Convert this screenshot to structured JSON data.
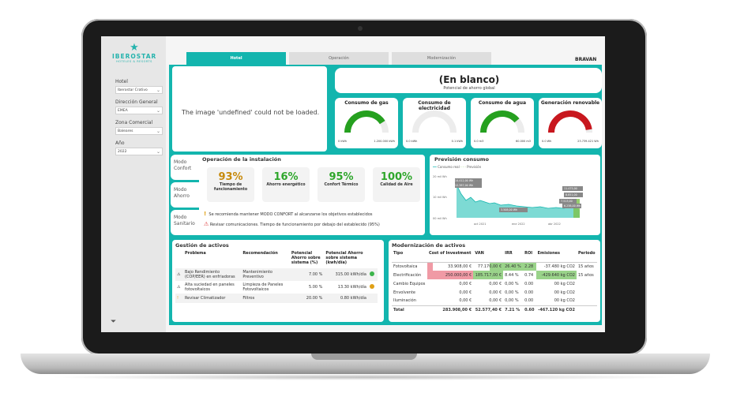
{
  "sidebar": {
    "logo": {
      "name": "IBEROSTAR",
      "tagline": "HOTELES & RESORTS"
    },
    "filters": [
      {
        "label": "Hotel",
        "value": "Iberostar Crativo"
      },
      {
        "label": "Dirección General",
        "value": "EMEA"
      },
      {
        "label": "Zona Comercial",
        "value": "Baleares"
      },
      {
        "label": "Año",
        "value": "2022"
      }
    ]
  },
  "tabs": [
    {
      "label": "Hotel",
      "active": true
    },
    {
      "label": "Operación",
      "active": false
    },
    {
      "label": "Modernización",
      "active": false
    }
  ],
  "brand": "BRAVAN",
  "image_placeholder": "The image 'undefined' could not be loaded.",
  "headline": {
    "title": "(En blanco)",
    "subtitle": "Potencial de ahorro global"
  },
  "gauges": [
    {
      "title": "Consumo de gas",
      "min": "0 kWh",
      "max": "1.200.000 kWh",
      "fill": 0.82,
      "color": "#25a01f"
    },
    {
      "title": "Consumo de electricidad",
      "min": "0.0 kWh",
      "max": "0.1 kWh",
      "fill": 0.0,
      "color": "#25a01f"
    },
    {
      "title": "Consumo de agua",
      "min": "0.0 m3",
      "max": "60.000 m3",
      "fill": 0.78,
      "color": "#25a01f"
    },
    {
      "title": "Generación renovable",
      "min": "0.0 Wh",
      "max": "23.739.421 Wh",
      "fill": 0.95,
      "color": "#c8171e"
    }
  ],
  "modes": [
    "Modo Confort",
    "Modo Ahorro",
    "Modo Sanitario"
  ],
  "operation": {
    "title": "Operación de la instalación",
    "kpis": [
      {
        "value": "93%",
        "label": "Tiempo de funcionamiento",
        "color": "#c78a0c"
      },
      {
        "value": "16%",
        "label": "Ahorro energético",
        "color": "#2ea62b"
      },
      {
        "value": "95%",
        "label": "Confort Térmico",
        "color": "#2ea62b"
      },
      {
        "value": "100%",
        "label": "Calidad de Aire",
        "color": "#2ea62b"
      }
    ],
    "notes": [
      {
        "icon": "!",
        "color": "#e0a015",
        "text": "Se recomienda mantener MODO CONFORT al alcanzarse los objetivos establecidos"
      },
      {
        "icon": "⚠",
        "color": "#d33",
        "text": "Revisar comunicaciones. Tiempo de funcionamiento por debajo del establecido (95%)"
      }
    ]
  },
  "forecast": {
    "title": "Previsión consumo",
    "legend": [
      "Consumo real",
      "Previsión"
    ],
    "yticks": [
      "20 mil Wh",
      "10 mil Wh",
      "00 mil Wh"
    ],
    "xticks": [
      "oct 2021",
      "ene 2022",
      "abr 2022"
    ],
    "labels": [
      "14.412,00 Wh",
      "12.387,00 Wh",
      "11.475,00",
      "8.851,00",
      "7.513,00",
      "6.238,00 Wh",
      "3.508,00 Wh"
    ]
  },
  "assets": {
    "title": "Gestión de activos",
    "columns": [
      "Problema",
      "Recomendación",
      "Potencial Ahorro sobre sistema (%)",
      "Potencial Ahorro sobre sistema (kwh/día)"
    ],
    "rows": [
      {
        "icon": "⚠",
        "problem": "Bajo Rendimiento (COP/EER) en enfriadoras",
        "rec": "Mantenimiento Preventivo",
        "pct": "7.00 %",
        "kwh": "315.00 kWh/día",
        "dot": "#3cb44b"
      },
      {
        "icon": "⚠",
        "problem": "Alta suciedad en paneles fotovoltaicos",
        "rec": "Limpieza de Paneles Fotovoltaicos",
        "pct": "5.00 %",
        "kwh": "13.30 kWh/día",
        "dot": "#e0a015"
      },
      {
        "icon": "!",
        "problem": "Revisar Climatizador",
        "rec": "Filtros",
        "pct": "20.00 %",
        "kwh": "0.80 kWh/día",
        "dot": ""
      }
    ]
  },
  "modernization": {
    "title": "Modernización de activos",
    "columns": [
      "Tipo",
      "Cost of Investment",
      "VAN",
      "IRR",
      "ROI",
      "Emisiones",
      "Periodo"
    ],
    "rows": [
      {
        "tipo": "Fotovoltaica",
        "cost": "33.908,00 €",
        "van": "77.170,00 €",
        "irr": "26.40 %",
        "roi": "2.28",
        "emis": "-37.480 kg CO2",
        "periodo": "15 años"
      },
      {
        "tipo": "Electrificación",
        "cost": "250.000,00 €",
        "van": "185.717,00 €",
        "irr": "8.44 %",
        "roi": "0.74",
        "emis": "-429.640 kg CO2",
        "periodo": "15 años"
      },
      {
        "tipo": "Cambio Equipos",
        "cost": "0,00 €",
        "van": "0,00 €",
        "irr": "0,00 %",
        "roi": "0.00",
        "emis": "00 kg CO2",
        "periodo": ""
      },
      {
        "tipo": "Envolvente",
        "cost": "0,00 €",
        "van": "0,00 €",
        "irr": "0,00 %",
        "roi": "0.00",
        "emis": "00 kg CO2",
        "periodo": ""
      },
      {
        "tipo": "Iluminación",
        "cost": "0,00 €",
        "van": "0,00 €",
        "irr": "0,00 %",
        "roi": "0.00",
        "emis": "00 kg CO2",
        "periodo": ""
      }
    ],
    "total": {
      "tipo": "Total",
      "cost": "283.908,00 €",
      "van": "52.577,40 €",
      "irr": "7.21 %",
      "roi": "0.60",
      "emis": "-467.120 kg CO2",
      "periodo": ""
    }
  }
}
